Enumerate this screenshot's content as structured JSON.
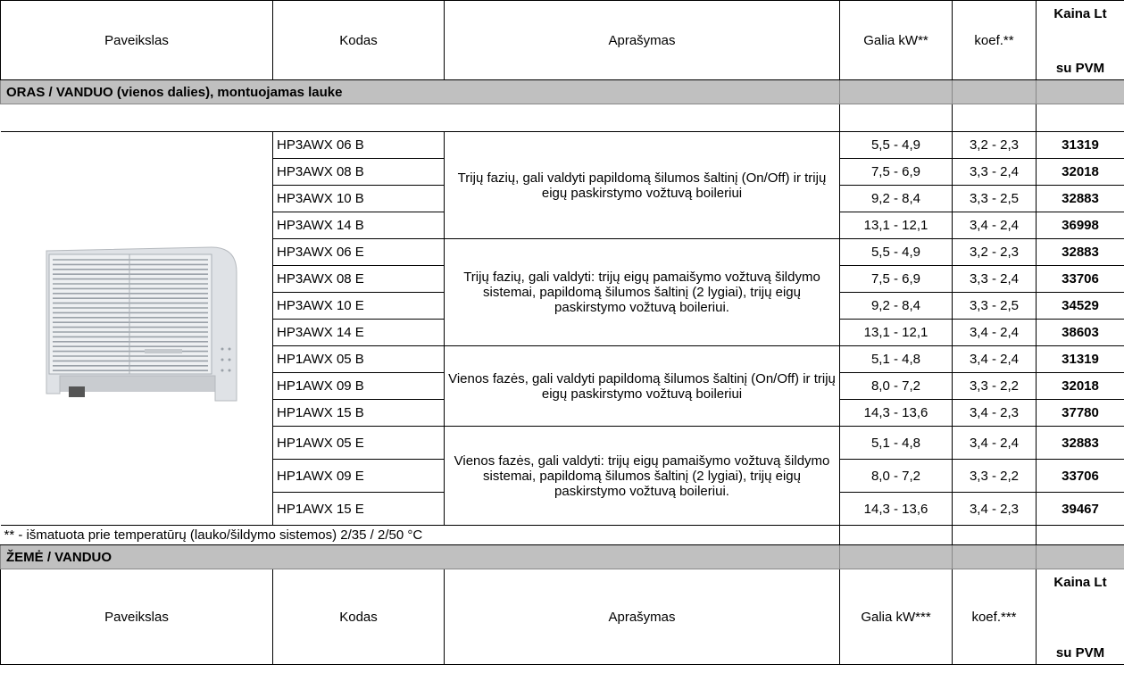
{
  "header": {
    "columns": [
      "Paveikslas",
      "Kodas",
      "Aprašymas",
      "Galia kW**",
      "koef.**"
    ],
    "price": [
      "Kaina Lt",
      "su PVM"
    ]
  },
  "section1_title": "ORAS / VANDUO  (vienos dalies), montuojamas lauke",
  "groups": [
    {
      "description": "Trijų fazių, gali valdyti papildomą šilumos šaltinį (On/Off) ir trijų eigų paskirstymo vožtuvą boileriui",
      "items": [
        {
          "code": "HP3AWX 06 B",
          "power": "5,5 - 4,9",
          "coef": "3,2 - 2,3",
          "price": 31319
        },
        {
          "code": "HP3AWX 08 B",
          "power": "7,5 - 6,9",
          "coef": "3,3 - 2,4",
          "price": 32018
        },
        {
          "code": "HP3AWX 10 B",
          "power": "9,2 - 8,4",
          "coef": "3,3 - 2,5",
          "price": 32883
        },
        {
          "code": "HP3AWX 14 B",
          "power": "13,1 - 12,1",
          "coef": "3,4 - 2,4",
          "price": 36998
        }
      ]
    },
    {
      "description": "Trijų fazių, gali valdyti: trijų eigų pamaišymo vožtuvą šildymo sistemai, papildomą šilumos šaltinį (2 lygiai), trijų eigų paskirstymo vožtuvą boileriui.",
      "items": [
        {
          "code": "HP3AWX 06 E",
          "power": "5,5 - 4,9",
          "coef": "3,2 - 2,3",
          "price": 32883
        },
        {
          "code": "HP3AWX 08 E",
          "power": "7,5 - 6,9",
          "coef": "3,3 - 2,4",
          "price": 33706
        },
        {
          "code": "HP3AWX 10 E",
          "power": "9,2 - 8,4",
          "coef": "3,3 - 2,5",
          "price": 34529
        },
        {
          "code": "HP3AWX 14 E",
          "power": "13,1 - 12,1",
          "coef": "3,4 - 2,4",
          "price": 38603
        }
      ]
    },
    {
      "description": "Vienos fazės, gali valdyti papildomą šilumos šaltinį (On/Off) ir trijų eigų paskirstymo vožtuvą boileriui",
      "items": [
        {
          "code": "HP1AWX 05 B",
          "power": "5,1 - 4,8",
          "coef": "3,4 - 2,4",
          "price": 31319
        },
        {
          "code": "HP1AWX 09 B",
          "power": "8,0 - 7,2",
          "coef": "3,3 - 2,2",
          "price": 32018
        },
        {
          "code": "HP1AWX 15 B",
          "power": "14,3 - 13,6",
          "coef": "3,4 - 2,3",
          "price": 37780
        }
      ]
    },
    {
      "description": "Vienos fazės, gali valdyti: trijų eigų pamaišymo vožtuvą šildymo sistemai, papildomą šilumos šaltinį (2 lygiai), trijų eigų paskirstymo vožtuvą boileriui.",
      "items": [
        {
          "code": "HP1AWX 05 E",
          "power": "5,1 - 4,8",
          "coef": "3,4 - 2,4",
          "price": 32883
        },
        {
          "code": "HP1AWX 09 E",
          "power": "8,0 - 7,2",
          "coef": "3,3 - 2,2",
          "price": 33706
        },
        {
          "code": "HP1AWX 15 E",
          "power": "14,3 - 13,6",
          "coef": "3,4 - 2,3",
          "price": 39467
        }
      ]
    }
  ],
  "footnote": "** - išmatuota prie temperatūrų (lauko/šildymo sistemos) 2/35 / 2/50 °C",
  "section2_title": "ŽEMĖ / VANDUO",
  "header2": {
    "columns": [
      "Paveikslas",
      "Kodas",
      "Aprašymas",
      "Galia kW***",
      "koef.***"
    ],
    "price": [
      "Kaina Lt",
      "su PVM"
    ]
  }
}
